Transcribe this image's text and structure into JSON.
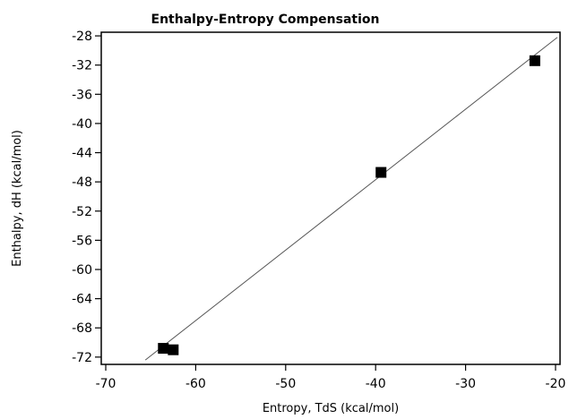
{
  "chart_data": {
    "type": "scatter",
    "title": "Enthalpy-Entropy Compensation",
    "xlabel": "Entropy, TdS (kcal/mol)",
    "ylabel": "Enthalpy, dH (kcal/mol)",
    "xlim": [
      -70.5,
      -19.5
    ],
    "ylim": [
      -73,
      -27.5
    ],
    "x_ticks": [
      -70,
      -60,
      -50,
      -40,
      -30,
      -20
    ],
    "y_ticks": [
      -28,
      -32,
      -36,
      -40,
      -44,
      -48,
      -52,
      -56,
      -60,
      -64,
      -68,
      -72
    ],
    "grid": false,
    "legend": "none",
    "series": [
      {
        "marker": "square",
        "color": "#000000",
        "points": [
          {
            "x": -63.6,
            "y": -70.8
          },
          {
            "x": -62.5,
            "y": -71.0
          },
          {
            "x": -39.4,
            "y": -46.7
          },
          {
            "x": -22.3,
            "y": -31.4
          }
        ]
      }
    ],
    "fit_line": {
      "color": "#555555",
      "points": [
        {
          "x": -65.6,
          "y": -72.4
        },
        {
          "x": -19.8,
          "y": -28.2
        }
      ]
    }
  }
}
